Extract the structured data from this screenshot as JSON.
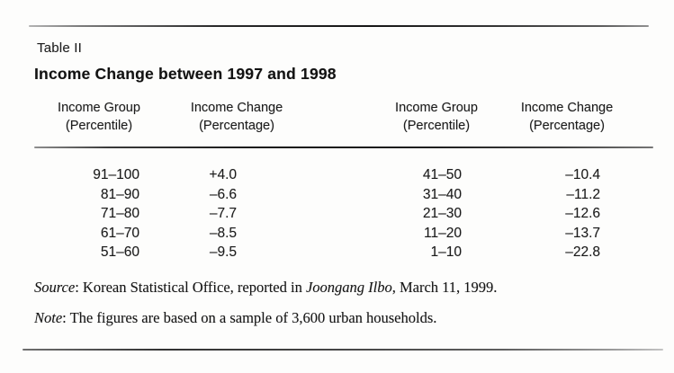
{
  "table_label": "Table II",
  "table_title": "Income Change between 1997 and 1998",
  "header": {
    "columns": [
      {
        "line1": "Income Group",
        "line2": "(Percentile)"
      },
      {
        "line1": "Income Change",
        "line2": "(Percentage)"
      },
      {
        "line1": "Income Group",
        "line2": "(Percentile)"
      },
      {
        "line1": "Income Change",
        "line2": "(Percentage)"
      }
    ]
  },
  "rows": [
    {
      "left_group": "91–100",
      "left_change": "+4.0",
      "right_group": "41–50",
      "right_change": "–10.4"
    },
    {
      "left_group": "81–90",
      "left_change": "–6.6",
      "right_group": "31–40",
      "right_change": "–11.2"
    },
    {
      "left_group": "71–80",
      "left_change": "–7.7",
      "right_group": "21–30",
      "right_change": "–12.6"
    },
    {
      "left_group": "61–70",
      "left_change": "–8.5",
      "right_group": "11–20",
      "right_change": "–13.7"
    },
    {
      "left_group": "51–60",
      "left_change": "–9.5",
      "right_group": "1–10",
      "right_change": "–22.8"
    }
  ],
  "source": {
    "label": "Source",
    "text_before_italic": ": Korean Statistical Office, reported in ",
    "italic": "Joongang Ilbo",
    "text_after_italic": ", March 11, 1999."
  },
  "note": {
    "label": "Note",
    "text": ": The figures are based on a sample of 3,600 urban households."
  },
  "colors": {
    "text": "#1b1b1b",
    "rule": "#1f1f1f",
    "background": "#fdfdfc"
  }
}
